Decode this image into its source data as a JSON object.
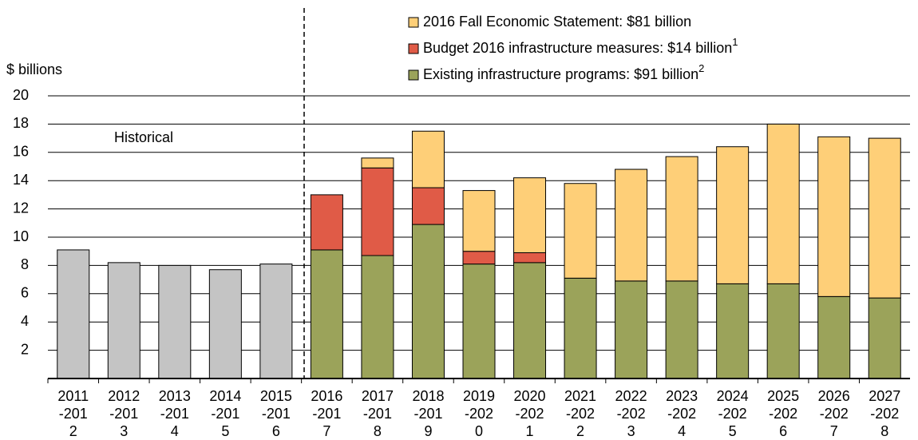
{
  "chart_data": {
    "type": "stacked_bar",
    "y_axis_label": "$ billions",
    "annotation": "Historical",
    "categories": [
      "2011-2012",
      "2012-2013",
      "2013-2014",
      "2014-2015",
      "2015-2016",
      "2016-2017",
      "2017-2018",
      "2018-2019",
      "2019-2020",
      "2020-2021",
      "2021-2022",
      "2022-2023",
      "2023-2024",
      "2024-2025",
      "2025-2026",
      "2026-2027",
      "2027-2028"
    ],
    "series": [
      {
        "color": "#c4c4c4",
        "values": [
          9.1,
          8.2,
          8.0,
          7.7,
          8.1,
          null,
          null,
          null,
          null,
          null,
          null,
          null,
          null,
          null,
          null,
          null,
          null
        ]
      },
      {
        "name": "Existing infrastructure programs: $91 billion",
        "footnote": "2",
        "color": "#9ba35a",
        "values": [
          null,
          null,
          null,
          null,
          null,
          9.1,
          8.7,
          10.9,
          8.1,
          8.2,
          7.1,
          6.9,
          6.9,
          6.7,
          6.7,
          5.8,
          5.7
        ]
      },
      {
        "name": "Budget 2016 infrastructure measures: $14 billion",
        "footnote": "1",
        "color": "#e05b47",
        "values": [
          null,
          null,
          null,
          null,
          null,
          3.9,
          6.2,
          2.6,
          0.9,
          0.7,
          null,
          null,
          null,
          null,
          null,
          null,
          null
        ]
      },
      {
        "name": "2016 Fall Economic Statement: $81 billion",
        "color": "#fecf78",
        "values": [
          null,
          null,
          null,
          null,
          null,
          null,
          0.7,
          4.0,
          4.3,
          5.3,
          6.7,
          7.9,
          8.8,
          9.7,
          11.3,
          11.3,
          11.3
        ]
      }
    ],
    "ylim": [
      0,
      20
    ],
    "yticks": [
      2,
      4,
      6,
      8,
      10,
      12,
      14,
      16,
      18,
      20
    ],
    "grid": true
  }
}
